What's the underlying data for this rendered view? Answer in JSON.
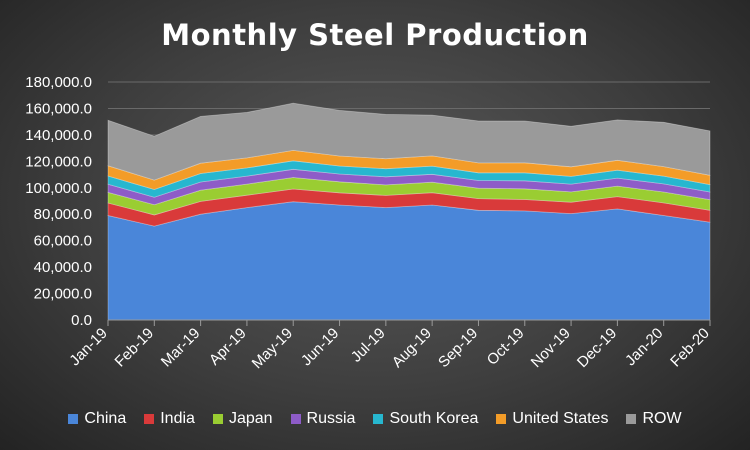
{
  "chart_data": {
    "type": "area",
    "stacked": true,
    "title": "Monthly Steel Production",
    "xlabel": "",
    "ylabel": "",
    "ylim": [
      0,
      180000
    ],
    "y_ticks": [
      "0.0",
      "20,000.0",
      "40,000.0",
      "60,000.0",
      "80,000.0",
      "100,000.0",
      "120,000.0",
      "140,000.0",
      "160,000.0",
      "180,000.0"
    ],
    "categories": [
      "Jan-19",
      "Feb-19",
      "Mar-19",
      "Apr-19",
      "May-19",
      "Jun-19",
      "Jul-19",
      "Aug-19",
      "Sep-19",
      "Oct-19",
      "Nov-19",
      "Dec-19",
      "Jan-20",
      "Feb-20"
    ],
    "grid": true,
    "legend_position": "bottom",
    "series": [
      {
        "name": "China",
        "color": "#4a86d9",
        "values": [
          79000,
          71000,
          80000,
          85000,
          89500,
          87000,
          85000,
          87000,
          83000,
          82500,
          80500,
          84000,
          79000,
          74000
        ]
      },
      {
        "name": "India",
        "color": "#d93a3a",
        "values": [
          9500,
          8500,
          9700,
          9400,
          9600,
          9200,
          9200,
          9300,
          8800,
          8600,
          8600,
          9300,
          9600,
          9000
        ]
      },
      {
        "name": "Japan",
        "color": "#9acd32",
        "values": [
          8000,
          7700,
          8500,
          8400,
          8700,
          8300,
          8000,
          7900,
          7900,
          8100,
          7800,
          8000,
          8200,
          8000
        ]
      },
      {
        "name": "Russia",
        "color": "#8e5cc8",
        "values": [
          6200,
          5700,
          6200,
          6000,
          6200,
          5900,
          6100,
          6000,
          5800,
          6100,
          5900,
          6000,
          6100,
          5800
        ]
      },
      {
        "name": "South Korea",
        "color": "#27b7cf",
        "values": [
          6200,
          5800,
          6400,
          6200,
          6400,
          6100,
          6100,
          6200,
          5800,
          6000,
          5800,
          6000,
          5900,
          5600
        ]
      },
      {
        "name": "United States",
        "color": "#f39c28",
        "values": [
          7700,
          7100,
          7800,
          7600,
          7900,
          7500,
          7600,
          7700,
          7500,
          7600,
          7300,
          7500,
          7200,
          7000
        ]
      },
      {
        "name": "ROW",
        "color": "#9a9a9a",
        "values": [
          34400,
          33200,
          35400,
          34400,
          35700,
          34500,
          33500,
          30900,
          31700,
          31600,
          30600,
          30500,
          33500,
          33600
        ]
      }
    ]
  }
}
